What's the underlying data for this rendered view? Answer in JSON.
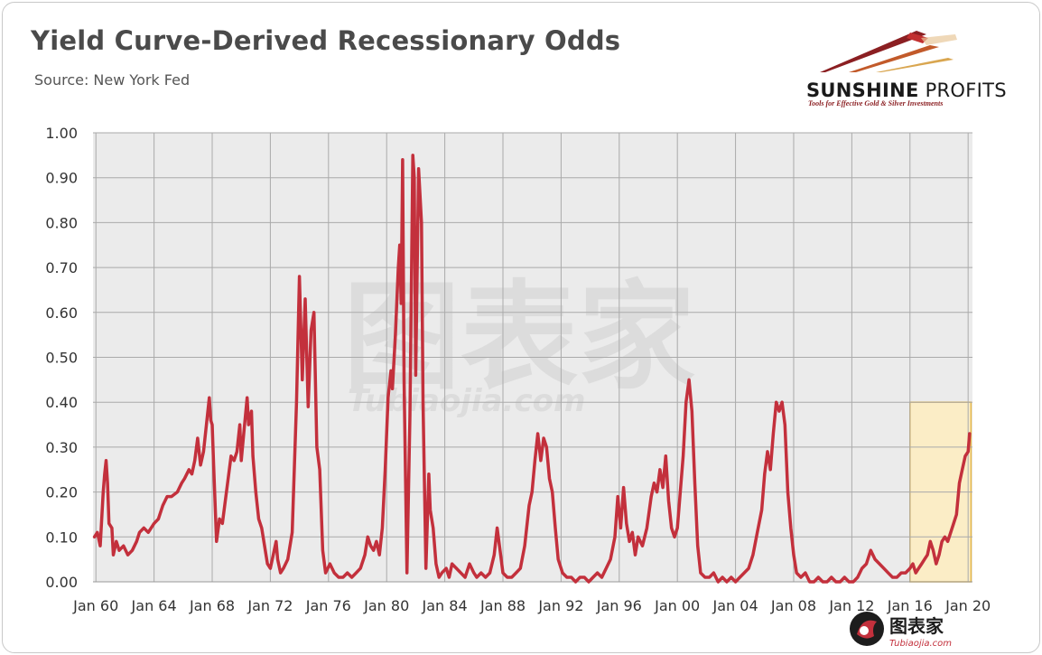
{
  "header": {
    "title": "Yield Curve-Derived Recessionary Odds",
    "subtitle": "Source: New York Fed"
  },
  "logo": {
    "brand_bold": "SUNSHINE",
    "brand_light": " PROFITS",
    "tagline": "Tools for Effective Gold & Silver Investments"
  },
  "watermark_bottom": {
    "cn": "图表家",
    "url": "Tubiaojia.com"
  },
  "colors": {
    "line": "#c3303c",
    "plot_bg": "#ebebeb",
    "grid": "#aaaaaa",
    "highlight_fill": "#fbedc6",
    "highlight_stroke": "#e6b84a"
  },
  "chart_data": {
    "type": "line",
    "title": "Yield Curve-Derived Recessionary Odds",
    "xlabel": "",
    "ylabel": "",
    "ylim": [
      0,
      1.0
    ],
    "xlim": [
      1959.8,
      2020.3
    ],
    "grid": true,
    "y_ticks": [
      "0.00",
      "0.10",
      "0.20",
      "0.30",
      "0.40",
      "0.50",
      "0.60",
      "0.70",
      "0.80",
      "0.90",
      "1.00"
    ],
    "x_ticks": [
      "Jan 60",
      "Jan 64",
      "Jan 68",
      "Jan 72",
      "Jan 76",
      "Jan 80",
      "Jan 84",
      "Jan 88",
      "Jan 92",
      "Jan 96",
      "Jan 00",
      "Jan 04",
      "Jan 08",
      "Jan 12",
      "Jan 16",
      "Jan 20"
    ],
    "highlight": {
      "x_from": 2016.0,
      "x_to": 2020.2,
      "y_from": 0,
      "y_to": 0.4
    },
    "series": [
      {
        "points": [
          [
            1959.9,
            0.1
          ],
          [
            1960.1,
            0.11
          ],
          [
            1960.3,
            0.08
          ],
          [
            1960.5,
            0.2
          ],
          [
            1960.6,
            0.24
          ],
          [
            1960.7,
            0.27
          ],
          [
            1960.8,
            0.22
          ],
          [
            1960.9,
            0.13
          ],
          [
            1961.1,
            0.12
          ],
          [
            1961.2,
            0.06
          ],
          [
            1961.4,
            0.09
          ],
          [
            1961.6,
            0.07
          ],
          [
            1961.9,
            0.08
          ],
          [
            1962.2,
            0.06
          ],
          [
            1962.5,
            0.07
          ],
          [
            1962.8,
            0.09
          ],
          [
            1963.0,
            0.11
          ],
          [
            1963.3,
            0.12
          ],
          [
            1963.6,
            0.11
          ],
          [
            1964.0,
            0.13
          ],
          [
            1964.3,
            0.14
          ],
          [
            1964.6,
            0.17
          ],
          [
            1964.9,
            0.19
          ],
          [
            1965.2,
            0.19
          ],
          [
            1965.6,
            0.2
          ],
          [
            1965.9,
            0.22
          ],
          [
            1966.1,
            0.23
          ],
          [
            1966.4,
            0.25
          ],
          [
            1966.6,
            0.24
          ],
          [
            1966.8,
            0.27
          ],
          [
            1967.0,
            0.32
          ],
          [
            1967.2,
            0.26
          ],
          [
            1967.4,
            0.29
          ],
          [
            1967.6,
            0.35
          ],
          [
            1967.8,
            0.41
          ],
          [
            1967.9,
            0.36
          ],
          [
            1968.0,
            0.35
          ],
          [
            1968.1,
            0.26
          ],
          [
            1968.3,
            0.09
          ],
          [
            1968.5,
            0.14
          ],
          [
            1968.7,
            0.13
          ],
          [
            1968.9,
            0.18
          ],
          [
            1969.1,
            0.23
          ],
          [
            1969.3,
            0.28
          ],
          [
            1969.5,
            0.27
          ],
          [
            1969.7,
            0.29
          ],
          [
            1969.9,
            0.35
          ],
          [
            1970.0,
            0.27
          ],
          [
            1970.2,
            0.34
          ],
          [
            1970.4,
            0.41
          ],
          [
            1970.5,
            0.35
          ],
          [
            1970.7,
            0.38
          ],
          [
            1970.8,
            0.28
          ],
          [
            1971.0,
            0.2
          ],
          [
            1971.2,
            0.14
          ],
          [
            1971.4,
            0.12
          ],
          [
            1971.6,
            0.08
          ],
          [
            1971.8,
            0.04
          ],
          [
            1972.0,
            0.03
          ],
          [
            1972.2,
            0.06
          ],
          [
            1972.4,
            0.09
          ],
          [
            1972.5,
            0.05
          ],
          [
            1972.7,
            0.02
          ],
          [
            1972.9,
            0.03
          ],
          [
            1973.2,
            0.05
          ],
          [
            1973.5,
            0.11
          ],
          [
            1973.8,
            0.4
          ],
          [
            1974.0,
            0.68
          ],
          [
            1974.2,
            0.45
          ],
          [
            1974.4,
            0.63
          ],
          [
            1974.6,
            0.39
          ],
          [
            1974.8,
            0.56
          ],
          [
            1975.0,
            0.6
          ],
          [
            1975.2,
            0.3
          ],
          [
            1975.4,
            0.25
          ],
          [
            1975.6,
            0.07
          ],
          [
            1975.8,
            0.02
          ],
          [
            1976.1,
            0.04
          ],
          [
            1976.4,
            0.02
          ],
          [
            1976.7,
            0.01
          ],
          [
            1977.0,
            0.01
          ],
          [
            1977.3,
            0.02
          ],
          [
            1977.6,
            0.01
          ],
          [
            1977.9,
            0.02
          ],
          [
            1978.2,
            0.03
          ],
          [
            1978.5,
            0.06
          ],
          [
            1978.7,
            0.1
          ],
          [
            1978.9,
            0.08
          ],
          [
            1979.1,
            0.07
          ],
          [
            1979.3,
            0.09
          ],
          [
            1979.5,
            0.06
          ],
          [
            1979.7,
            0.12
          ],
          [
            1979.9,
            0.25
          ],
          [
            1980.1,
            0.41
          ],
          [
            1980.3,
            0.47
          ],
          [
            1980.4,
            0.43
          ],
          [
            1980.6,
            0.55
          ],
          [
            1980.8,
            0.7
          ],
          [
            1980.9,
            0.75
          ],
          [
            1981.0,
            0.62
          ],
          [
            1981.1,
            0.94
          ],
          [
            1981.2,
            0.45
          ],
          [
            1981.4,
            0.02
          ],
          [
            1981.6,
            0.37
          ],
          [
            1981.8,
            0.95
          ],
          [
            1981.9,
            0.9
          ],
          [
            1982.0,
            0.46
          ],
          [
            1982.2,
            0.92
          ],
          [
            1982.4,
            0.8
          ],
          [
            1982.5,
            0.4
          ],
          [
            1982.7,
            0.03
          ],
          [
            1982.9,
            0.24
          ],
          [
            1983.0,
            0.16
          ],
          [
            1983.2,
            0.12
          ],
          [
            1983.4,
            0.04
          ],
          [
            1983.6,
            0.01
          ],
          [
            1983.8,
            0.02
          ],
          [
            1984.1,
            0.03
          ],
          [
            1984.3,
            0.01
          ],
          [
            1984.5,
            0.04
          ],
          [
            1984.8,
            0.03
          ],
          [
            1985.1,
            0.02
          ],
          [
            1985.4,
            0.01
          ],
          [
            1985.7,
            0.04
          ],
          [
            1986.0,
            0.02
          ],
          [
            1986.2,
            0.01
          ],
          [
            1986.5,
            0.02
          ],
          [
            1986.8,
            0.01
          ],
          [
            1987.1,
            0.02
          ],
          [
            1987.4,
            0.06
          ],
          [
            1987.6,
            0.12
          ],
          [
            1987.8,
            0.07
          ],
          [
            1988.0,
            0.02
          ],
          [
            1988.3,
            0.01
          ],
          [
            1988.6,
            0.01
          ],
          [
            1988.9,
            0.02
          ],
          [
            1989.2,
            0.03
          ],
          [
            1989.5,
            0.08
          ],
          [
            1989.8,
            0.17
          ],
          [
            1990.0,
            0.2
          ],
          [
            1990.2,
            0.27
          ],
          [
            1990.4,
            0.33
          ],
          [
            1990.6,
            0.27
          ],
          [
            1990.8,
            0.32
          ],
          [
            1991.0,
            0.3
          ],
          [
            1991.2,
            0.23
          ],
          [
            1991.4,
            0.2
          ],
          [
            1991.6,
            0.12
          ],
          [
            1991.8,
            0.05
          ],
          [
            1992.1,
            0.02
          ],
          [
            1992.4,
            0.01
          ],
          [
            1992.7,
            0.01
          ],
          [
            1993.0,
            0.0
          ],
          [
            1993.3,
            0.01
          ],
          [
            1993.6,
            0.01
          ],
          [
            1993.9,
            0.0
          ],
          [
            1994.2,
            0.01
          ],
          [
            1994.5,
            0.02
          ],
          [
            1994.8,
            0.01
          ],
          [
            1995.1,
            0.03
          ],
          [
            1995.4,
            0.05
          ],
          [
            1995.7,
            0.1
          ],
          [
            1995.9,
            0.19
          ],
          [
            1996.1,
            0.12
          ],
          [
            1996.3,
            0.21
          ],
          [
            1996.5,
            0.13
          ],
          [
            1996.7,
            0.09
          ],
          [
            1996.9,
            0.11
          ],
          [
            1997.1,
            0.06
          ],
          [
            1997.3,
            0.1
          ],
          [
            1997.6,
            0.08
          ],
          [
            1997.9,
            0.12
          ],
          [
            1998.2,
            0.19
          ],
          [
            1998.4,
            0.22
          ],
          [
            1998.6,
            0.2
          ],
          [
            1998.8,
            0.25
          ],
          [
            1999.0,
            0.21
          ],
          [
            1999.2,
            0.28
          ],
          [
            1999.4,
            0.18
          ],
          [
            1999.6,
            0.12
          ],
          [
            1999.8,
            0.1
          ],
          [
            2000.0,
            0.12
          ],
          [
            2000.2,
            0.2
          ],
          [
            2000.4,
            0.28
          ],
          [
            2000.6,
            0.4
          ],
          [
            2000.8,
            0.45
          ],
          [
            2001.0,
            0.38
          ],
          [
            2001.2,
            0.22
          ],
          [
            2001.4,
            0.08
          ],
          [
            2001.6,
            0.02
          ],
          [
            2001.9,
            0.01
          ],
          [
            2002.2,
            0.01
          ],
          [
            2002.5,
            0.02
          ],
          [
            2002.8,
            0.0
          ],
          [
            2003.1,
            0.01
          ],
          [
            2003.4,
            0.0
          ],
          [
            2003.7,
            0.01
          ],
          [
            2004.0,
            0.0
          ],
          [
            2004.3,
            0.01
          ],
          [
            2004.6,
            0.02
          ],
          [
            2004.9,
            0.03
          ],
          [
            2005.2,
            0.06
          ],
          [
            2005.5,
            0.11
          ],
          [
            2005.8,
            0.16
          ],
          [
            2006.0,
            0.24
          ],
          [
            2006.2,
            0.29
          ],
          [
            2006.4,
            0.25
          ],
          [
            2006.6,
            0.33
          ],
          [
            2006.8,
            0.4
          ],
          [
            2007.0,
            0.38
          ],
          [
            2007.2,
            0.4
          ],
          [
            2007.4,
            0.35
          ],
          [
            2007.6,
            0.2
          ],
          [
            2007.8,
            0.12
          ],
          [
            2008.0,
            0.06
          ],
          [
            2008.2,
            0.02
          ],
          [
            2008.5,
            0.01
          ],
          [
            2008.8,
            0.02
          ],
          [
            2009.1,
            0.0
          ],
          [
            2009.4,
            0.0
          ],
          [
            2009.7,
            0.01
          ],
          [
            2010.0,
            0.0
          ],
          [
            2010.3,
            0.0
          ],
          [
            2010.6,
            0.01
          ],
          [
            2010.9,
            0.0
          ],
          [
            2011.2,
            0.0
          ],
          [
            2011.5,
            0.01
          ],
          [
            2011.8,
            0.0
          ],
          [
            2012.1,
            0.0
          ],
          [
            2012.4,
            0.01
          ],
          [
            2012.7,
            0.03
          ],
          [
            2013.0,
            0.04
          ],
          [
            2013.3,
            0.07
          ],
          [
            2013.6,
            0.05
          ],
          [
            2013.9,
            0.04
          ],
          [
            2014.2,
            0.03
          ],
          [
            2014.5,
            0.02
          ],
          [
            2014.8,
            0.01
          ],
          [
            2015.1,
            0.01
          ],
          [
            2015.4,
            0.02
          ],
          [
            2015.7,
            0.02
          ],
          [
            2016.0,
            0.03
          ],
          [
            2016.2,
            0.04
          ],
          [
            2016.4,
            0.02
          ],
          [
            2016.6,
            0.03
          ],
          [
            2016.8,
            0.04
          ],
          [
            2017.0,
            0.05
          ],
          [
            2017.2,
            0.06
          ],
          [
            2017.4,
            0.09
          ],
          [
            2017.6,
            0.07
          ],
          [
            2017.8,
            0.04
          ],
          [
            2018.0,
            0.06
          ],
          [
            2018.2,
            0.09
          ],
          [
            2018.4,
            0.1
          ],
          [
            2018.6,
            0.09
          ],
          [
            2018.8,
            0.11
          ],
          [
            2019.0,
            0.13
          ],
          [
            2019.2,
            0.15
          ],
          [
            2019.4,
            0.22
          ],
          [
            2019.6,
            0.25
          ],
          [
            2019.8,
            0.28
          ],
          [
            2020.0,
            0.29
          ],
          [
            2020.1,
            0.33
          ]
        ]
      }
    ]
  }
}
